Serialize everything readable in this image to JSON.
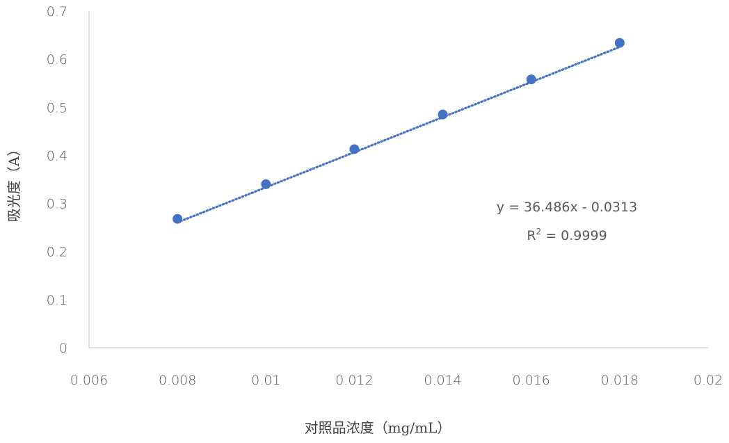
{
  "chart_data": {
    "type": "scatter",
    "title": "",
    "xlabel": "对照品浓度（mg/mL）",
    "ylabel": "吸光度（A）",
    "xlim": [
      0.006,
      0.02
    ],
    "ylim": [
      0,
      0.7
    ],
    "x_ticks": [
      "0.006",
      "0.008",
      "0.01",
      "0.012",
      "0.014",
      "0.016",
      "0.018",
      "0.02"
    ],
    "y_ticks": [
      "0",
      "0.1",
      "0.2",
      "0.3",
      "0.4",
      "0.5",
      "0.6",
      "0.7"
    ],
    "grid": false,
    "legend": "none",
    "series": [
      {
        "x": [
          0.008,
          0.01,
          0.012,
          0.014,
          0.016,
          0.018
        ],
        "y": [
          0.268,
          0.34,
          0.413,
          0.485,
          0.558,
          0.634
        ],
        "color": "#4472C4",
        "marker": "circle"
      }
    ],
    "trendline": {
      "type": "linear",
      "slope": 36.486,
      "intercept": -0.0313,
      "style": "dotted",
      "color": "#4472C4",
      "equation_label": "y = 36.486x - 0.0313",
      "r2_prefix": "R",
      "r2_sup": "2",
      "r2_value": " = 0.9999"
    }
  }
}
